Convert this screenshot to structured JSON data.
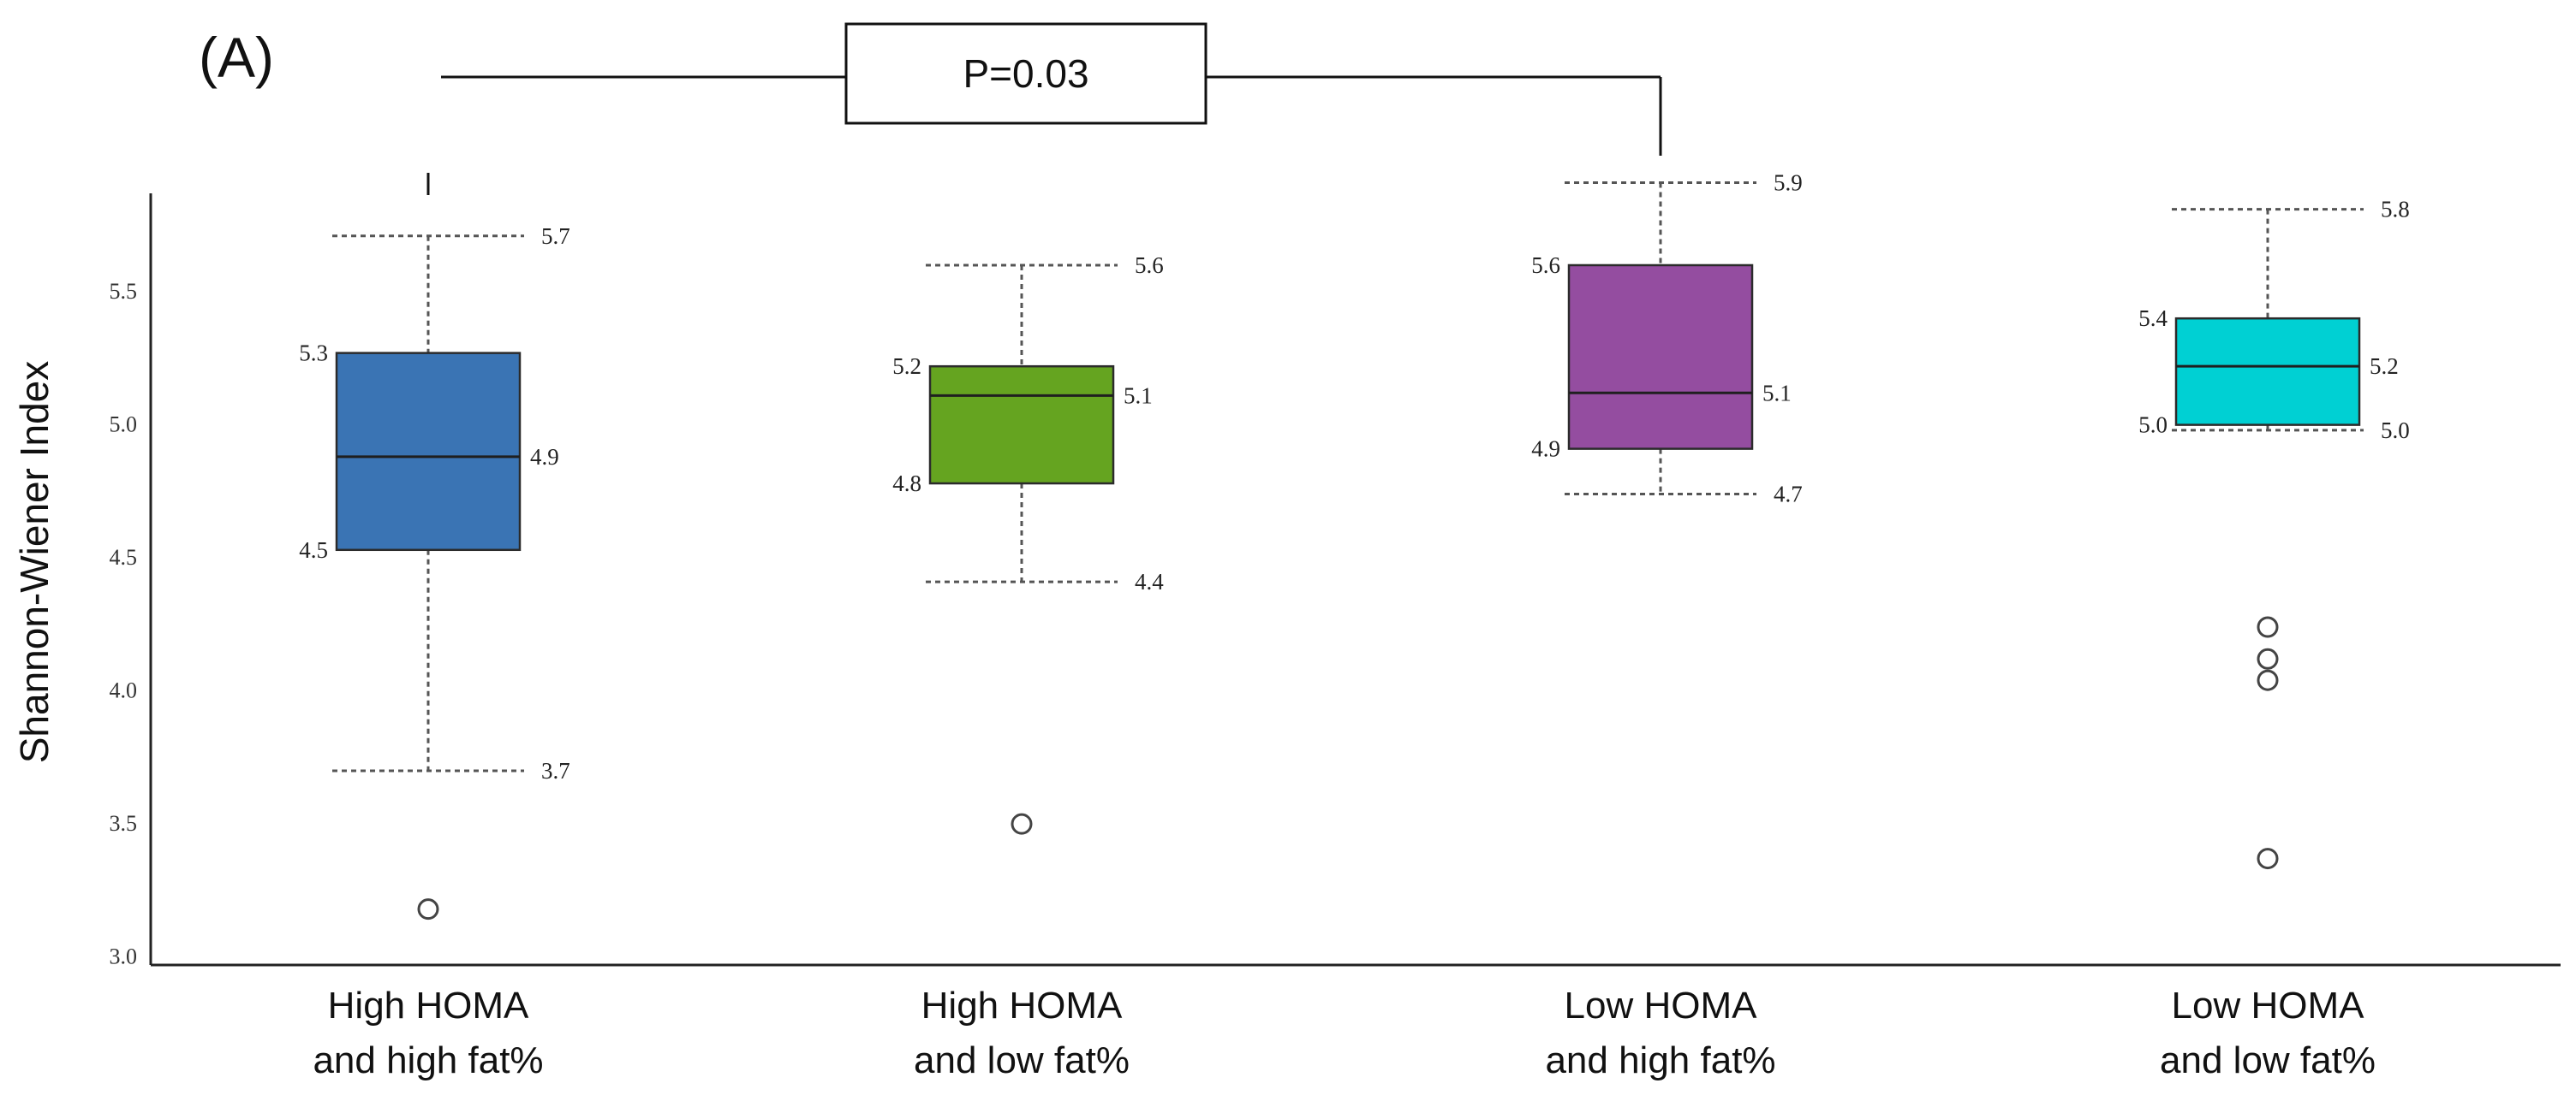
{
  "panel_label": "(A)",
  "colors": {
    "axis": "#222222",
    "whisker": "#555555",
    "median": "#1f1f1f",
    "outlier": "#444444"
  },
  "chart_data": {
    "type": "box",
    "title": "",
    "xlabel": "",
    "ylabel": "Shannon-Wiener Index",
    "ylim": [
      2.97,
      5.87
    ],
    "yticks": [
      3.0,
      3.5,
      4.0,
      4.5,
      5.0,
      5.5
    ],
    "ytick_labels": [
      "3.0",
      "3.5",
      "4.0",
      "4.5",
      "5.0",
      "5.5"
    ],
    "grid": false,
    "groups": [
      {
        "name_lines": [
          "High HOMA",
          "and high fat%"
        ],
        "color": "#3a74b4",
        "whisker_low": 3.7,
        "q1": 4.53,
        "median": 4.88,
        "q3": 5.27,
        "whisker_high": 5.71,
        "outliers": [
          3.18
        ],
        "labels": {
          "whisker_high": "5.7",
          "q3": "5.3",
          "median": "4.9",
          "q1": "4.5",
          "whisker_low": "3.7"
        }
      },
      {
        "name_lines": [
          "High HOMA",
          "and low fat%"
        ],
        "color": "#65a420",
        "whisker_low": 4.41,
        "q1": 4.78,
        "median": 5.11,
        "q3": 5.22,
        "whisker_high": 5.6,
        "outliers": [
          3.5
        ],
        "labels": {
          "whisker_high": "5.6",
          "q3": "5.2",
          "median": "5.1",
          "q1": "4.8",
          "whisker_low": "4.4"
        }
      },
      {
        "name_lines": [
          "Low HOMA",
          "and high fat%"
        ],
        "color": "#944da0",
        "whisker_low": 4.74,
        "q1": 4.91,
        "median": 5.12,
        "q3": 5.6,
        "whisker_high": 5.91,
        "outliers": [],
        "labels": {
          "whisker_high": "5.9",
          "q3": "5.6",
          "median": "5.1",
          "q1": "4.9",
          "whisker_low": "4.7"
        }
      },
      {
        "name_lines": [
          "Low HOMA",
          "and low fat%"
        ],
        "color": "#00d0d3",
        "whisker_low": 4.98,
        "q1": 5.0,
        "median": 5.22,
        "q3": 5.4,
        "whisker_high": 5.81,
        "outliers": [
          4.24,
          4.12,
          4.04,
          3.37
        ],
        "labels": {
          "whisker_high": "5.8",
          "q3": "5.4",
          "median": "5.2",
          "q1": "5.0",
          "whisker_low": "5.0"
        }
      }
    ],
    "annotations": [
      {
        "type": "significance_bracket",
        "from_group": 0,
        "to_group": 2,
        "text": "P=0.03"
      }
    ]
  }
}
